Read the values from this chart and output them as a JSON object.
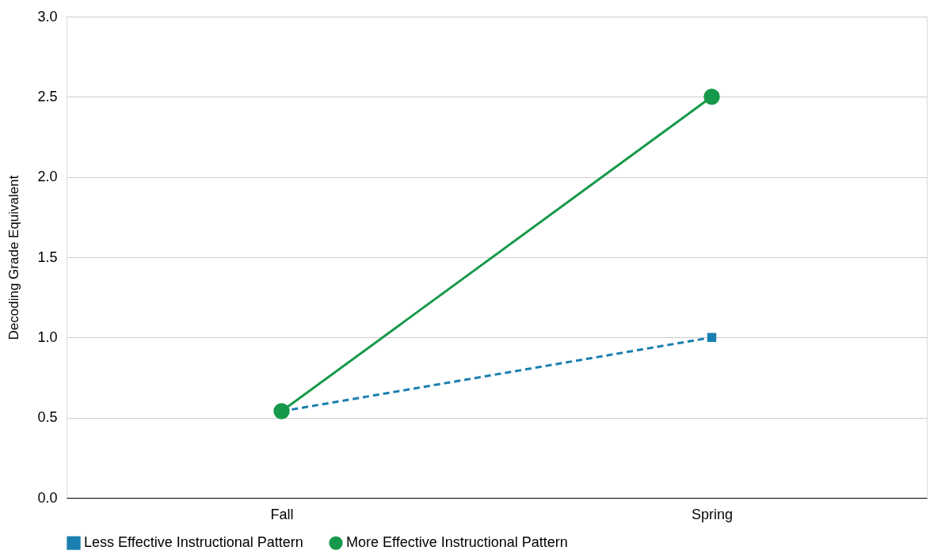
{
  "chart_data": {
    "type": "line",
    "ylabel": "Decoding Grade Equivalent",
    "categories": [
      "Fall",
      "Spring"
    ],
    "series": [
      {
        "name": "Less Effective Instructional Pattern",
        "color": "#1a7fb0",
        "values": [
          0.54,
          1.0
        ],
        "marker": "square",
        "line_style": "dashed"
      },
      {
        "name": "More Effective Instructional Pattern",
        "color": "#16994a",
        "values": [
          0.54,
          2.5
        ],
        "marker": "circle",
        "line_style": "solid"
      }
    ],
    "ylim": [
      0,
      3.0
    ],
    "yticks": [
      {
        "value": 0,
        "label": "0.0"
      },
      0.5,
      {
        "value": 1,
        "label": "1.0"
      },
      1.5,
      {
        "value": 2,
        "label": "2.0"
      },
      2.5,
      {
        "value": 3,
        "label": "3.0"
      }
    ],
    "grid": "y",
    "legend": "bottom"
  }
}
